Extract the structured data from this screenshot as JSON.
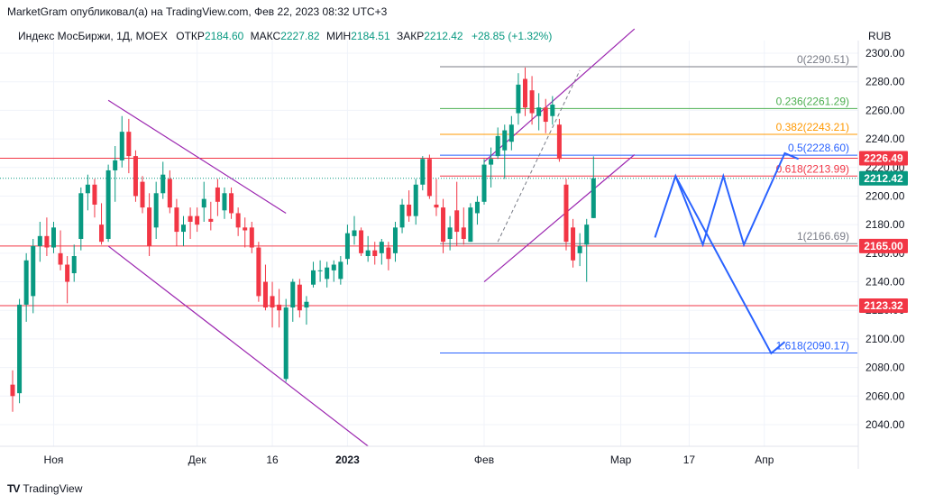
{
  "header": {
    "publisher_line": "MarketGram опубликовал(а) на TradingView.com, Фев 22, 2023 08:32 UTC+3",
    "symbol": "Индекс МосБиржи, 1Д, MOEX",
    "open_label": "ОТКР",
    "open_value": "2184.60",
    "high_label": "МАКС",
    "high_value": "2227.82",
    "low_label": "МИН",
    "low_value": "2184.51",
    "close_label": "ЗАКР",
    "close_value": "2212.42",
    "change": "+28.85 (+1.32%)"
  },
  "footer": {
    "brand": "TradingView",
    "logo": "TV"
  },
  "colors": {
    "up": "#089981",
    "down": "#f23645",
    "channel": "#9c27b0",
    "projection": "#2962ff",
    "level": "#f23645"
  },
  "chart_data": {
    "type": "candlestick",
    "currency": "RUB",
    "ylim": [
      2026,
      2306
    ],
    "y_ticks": [
      "2040.00",
      "2060.00",
      "2080.00",
      "2100.00",
      "2120.00",
      "2140.00",
      "2160.00",
      "2180.00",
      "2200.00",
      "2220.00",
      "2240.00",
      "2260.00",
      "2280.00",
      "2300.00"
    ],
    "x_ticks": [
      {
        "label": "Ноя",
        "bar": 6
      },
      {
        "label": "Дек",
        "bar": 27
      },
      {
        "label": "16",
        "bar": 38
      },
      {
        "label": "2023",
        "bar": 49
      },
      {
        "label": "Фев",
        "bar": 69
      },
      {
        "label": "Мар",
        "bar": 89
      },
      {
        "label": "17",
        "bar": 99
      },
      {
        "label": "Апр",
        "bar": 110
      }
    ],
    "candles": [
      {
        "o": 2068,
        "h": 2078,
        "l": 2049,
        "c": 2060
      },
      {
        "o": 2062,
        "h": 2128,
        "l": 2055,
        "c": 2124
      },
      {
        "o": 2124,
        "h": 2160,
        "l": 2112,
        "c": 2155
      },
      {
        "o": 2130,
        "h": 2170,
        "l": 2118,
        "c": 2165
      },
      {
        "o": 2165,
        "h": 2182,
        "l": 2154,
        "c": 2172
      },
      {
        "o": 2172,
        "h": 2185,
        "l": 2158,
        "c": 2164
      },
      {
        "o": 2164,
        "h": 2182,
        "l": 2160,
        "c": 2178
      },
      {
        "o": 2160,
        "h": 2176,
        "l": 2148,
        "c": 2152
      },
      {
        "o": 2152,
        "h": 2158,
        "l": 2125,
        "c": 2140
      },
      {
        "o": 2146,
        "h": 2166,
        "l": 2140,
        "c": 2158
      },
      {
        "o": 2170,
        "h": 2206,
        "l": 2162,
        "c": 2202
      },
      {
        "o": 2202,
        "h": 2215,
        "l": 2190,
        "c": 2208
      },
      {
        "o": 2208,
        "h": 2212,
        "l": 2185,
        "c": 2194
      },
      {
        "o": 2180,
        "h": 2195,
        "l": 2166,
        "c": 2168
      },
      {
        "o": 2170,
        "h": 2222,
        "l": 2168,
        "c": 2218
      },
      {
        "o": 2218,
        "h": 2235,
        "l": 2196,
        "c": 2225
      },
      {
        "o": 2225,
        "h": 2256,
        "l": 2220,
        "c": 2245
      },
      {
        "o": 2245,
        "h": 2254,
        "l": 2216,
        "c": 2228
      },
      {
        "o": 2228,
        "h": 2232,
        "l": 2196,
        "c": 2200
      },
      {
        "o": 2210,
        "h": 2214,
        "l": 2188,
        "c": 2192
      },
      {
        "o": 2192,
        "h": 2202,
        "l": 2158,
        "c": 2165
      },
      {
        "o": 2178,
        "h": 2210,
        "l": 2170,
        "c": 2202
      },
      {
        "o": 2202,
        "h": 2224,
        "l": 2198,
        "c": 2215
      },
      {
        "o": 2212,
        "h": 2218,
        "l": 2188,
        "c": 2192
      },
      {
        "o": 2192,
        "h": 2198,
        "l": 2165,
        "c": 2175
      },
      {
        "o": 2175,
        "h": 2186,
        "l": 2165,
        "c": 2180
      },
      {
        "o": 2186,
        "h": 2192,
        "l": 2170,
        "c": 2182
      },
      {
        "o": 2186,
        "h": 2192,
        "l": 2175,
        "c": 2180
      },
      {
        "o": 2192,
        "h": 2210,
        "l": 2182,
        "c": 2198
      },
      {
        "o": 2184,
        "h": 2196,
        "l": 2176,
        "c": 2182
      },
      {
        "o": 2206,
        "h": 2212,
        "l": 2186,
        "c": 2196
      },
      {
        "o": 2190,
        "h": 2206,
        "l": 2184,
        "c": 2202
      },
      {
        "o": 2202,
        "h": 2206,
        "l": 2184,
        "c": 2188
      },
      {
        "o": 2188,
        "h": 2192,
        "l": 2172,
        "c": 2178
      },
      {
        "o": 2178,
        "h": 2185,
        "l": 2164,
        "c": 2176
      },
      {
        "o": 2178,
        "h": 2182,
        "l": 2160,
        "c": 2164
      },
      {
        "o": 2164,
        "h": 2168,
        "l": 2126,
        "c": 2130
      },
      {
        "o": 2140,
        "h": 2152,
        "l": 2120,
        "c": 2122
      },
      {
        "o": 2130,
        "h": 2140,
        "l": 2108,
        "c": 2122
      },
      {
        "o": 2124,
        "h": 2135,
        "l": 2108,
        "c": 2120
      },
      {
        "o": 2072,
        "h": 2128,
        "l": 2070,
        "c": 2122
      },
      {
        "o": 2122,
        "h": 2142,
        "l": 2112,
        "c": 2140
      },
      {
        "o": 2138,
        "h": 2142,
        "l": 2115,
        "c": 2120
      },
      {
        "o": 2122,
        "h": 2130,
        "l": 2110,
        "c": 2126
      },
      {
        "o": 2138,
        "h": 2154,
        "l": 2136,
        "c": 2148
      },
      {
        "o": 2148,
        "h": 2155,
        "l": 2140,
        "c": 2148
      },
      {
        "o": 2142,
        "h": 2154,
        "l": 2136,
        "c": 2150
      },
      {
        "o": 2148,
        "h": 2155,
        "l": 2140,
        "c": 2152
      },
      {
        "o": 2142,
        "h": 2158,
        "l": 2138,
        "c": 2154
      },
      {
        "o": 2156,
        "h": 2180,
        "l": 2152,
        "c": 2174
      },
      {
        "o": 2172,
        "h": 2186,
        "l": 2166,
        "c": 2176
      },
      {
        "o": 2176,
        "h": 2178,
        "l": 2158,
        "c": 2160
      },
      {
        "o": 2158,
        "h": 2172,
        "l": 2154,
        "c": 2162
      },
      {
        "o": 2162,
        "h": 2168,
        "l": 2152,
        "c": 2158
      },
      {
        "o": 2160,
        "h": 2170,
        "l": 2152,
        "c": 2168
      },
      {
        "o": 2164,
        "h": 2168,
        "l": 2148,
        "c": 2156
      },
      {
        "o": 2160,
        "h": 2182,
        "l": 2154,
        "c": 2178
      },
      {
        "o": 2178,
        "h": 2198,
        "l": 2174,
        "c": 2194
      },
      {
        "o": 2194,
        "h": 2204,
        "l": 2182,
        "c": 2186
      },
      {
        "o": 2186,
        "h": 2212,
        "l": 2180,
        "c": 2208
      },
      {
        "o": 2208,
        "h": 2228,
        "l": 2204,
        "c": 2226
      },
      {
        "o": 2226,
        "h": 2229,
        "l": 2198,
        "c": 2200
      },
      {
        "o": 2194,
        "h": 2212,
        "l": 2186,
        "c": 2192
      },
      {
        "o": 2192,
        "h": 2198,
        "l": 2160,
        "c": 2168
      },
      {
        "o": 2170,
        "h": 2186,
        "l": 2162,
        "c": 2178
      },
      {
        "o": 2190,
        "h": 2210,
        "l": 2165,
        "c": 2175
      },
      {
        "o": 2178,
        "h": 2192,
        "l": 2166,
        "c": 2170
      },
      {
        "o": 2168,
        "h": 2195,
        "l": 2168,
        "c": 2192
      },
      {
        "o": 2188,
        "h": 2200,
        "l": 2180,
        "c": 2196
      },
      {
        "o": 2196,
        "h": 2226,
        "l": 2194,
        "c": 2222
      },
      {
        "o": 2222,
        "h": 2234,
        "l": 2206,
        "c": 2226
      },
      {
        "o": 2228,
        "h": 2248,
        "l": 2226,
        "c": 2242
      },
      {
        "o": 2232,
        "h": 2250,
        "l": 2212,
        "c": 2246
      },
      {
        "o": 2238,
        "h": 2256,
        "l": 2232,
        "c": 2250
      },
      {
        "o": 2258,
        "h": 2286,
        "l": 2250,
        "c": 2278
      },
      {
        "o": 2282,
        "h": 2290,
        "l": 2256,
        "c": 2262
      },
      {
        "o": 2274,
        "h": 2284,
        "l": 2250,
        "c": 2258
      },
      {
        "o": 2256,
        "h": 2272,
        "l": 2246,
        "c": 2262
      },
      {
        "o": 2262,
        "h": 2268,
        "l": 2244,
        "c": 2252
      },
      {
        "o": 2256,
        "h": 2270,
        "l": 2250,
        "c": 2264
      },
      {
        "o": 2250,
        "h": 2254,
        "l": 2224,
        "c": 2226
      },
      {
        "o": 2208,
        "h": 2212,
        "l": 2162,
        "c": 2168
      },
      {
        "o": 2178,
        "h": 2184,
        "l": 2150,
        "c": 2155
      },
      {
        "o": 2160,
        "h": 2174,
        "l": 2151,
        "c": 2165
      },
      {
        "o": 2166,
        "h": 2184,
        "l": 2140,
        "c": 2180
      },
      {
        "o": 2184.6,
        "h": 2227.82,
        "l": 2184.51,
        "c": 2212.42
      }
    ],
    "fibonacci": [
      {
        "label": "0(2290.51)",
        "value": 2290.51,
        "color": "#787b86"
      },
      {
        "label": "0.236(2261.29)",
        "value": 2261.29,
        "color": "#4caf50"
      },
      {
        "label": "0.382(2243.21)",
        "value": 2243.21,
        "color": "#ff9800"
      },
      {
        "label": "0.5(2228.60)",
        "value": 2228.6,
        "color": "#2962ff"
      },
      {
        "label": "0.618(2213.99)",
        "value": 2213.99,
        "color": "#f23645"
      },
      {
        "label": "1(2166.69)",
        "value": 2166.69,
        "color": "#787b86"
      },
      {
        "label": "1.618(2090.17)",
        "value": 2090.17,
        "color": "#2962ff"
      }
    ],
    "horizontal_levels": [
      {
        "label": "2226.49",
        "value": 2226.49
      },
      {
        "label": "2165.00",
        "value": 2165.0
      },
      {
        "label": "2123.32",
        "value": 2123.32
      }
    ],
    "last_price": {
      "label": "2212.42",
      "value": 2212.42,
      "color": "#089981"
    },
    "channels": [
      {
        "upper": [
          [
            14,
            2267
          ],
          [
            40,
            2188
          ]
        ],
        "lower": [
          [
            14,
            2165
          ],
          [
            52,
            2025
          ]
        ]
      },
      {
        "upper": [
          [
            69,
            2224
          ],
          [
            91,
            2317
          ]
        ],
        "lower": [
          [
            69,
            2140
          ],
          [
            91,
            2229
          ]
        ]
      }
    ],
    "dashed_line": [
      [
        71,
        2168
      ],
      [
        83,
        2288
      ]
    ],
    "projection_up": [
      [
        94,
        2171
      ],
      [
        97,
        2214
      ],
      [
        101,
        2166
      ],
      [
        104,
        2214
      ],
      [
        107,
        2166
      ],
      [
        113,
        2230
      ],
      [
        115,
        2226
      ]
    ],
    "projection_down": [
      [
        97,
        2214
      ],
      [
        111,
        2090
      ],
      [
        113,
        2098
      ]
    ]
  }
}
